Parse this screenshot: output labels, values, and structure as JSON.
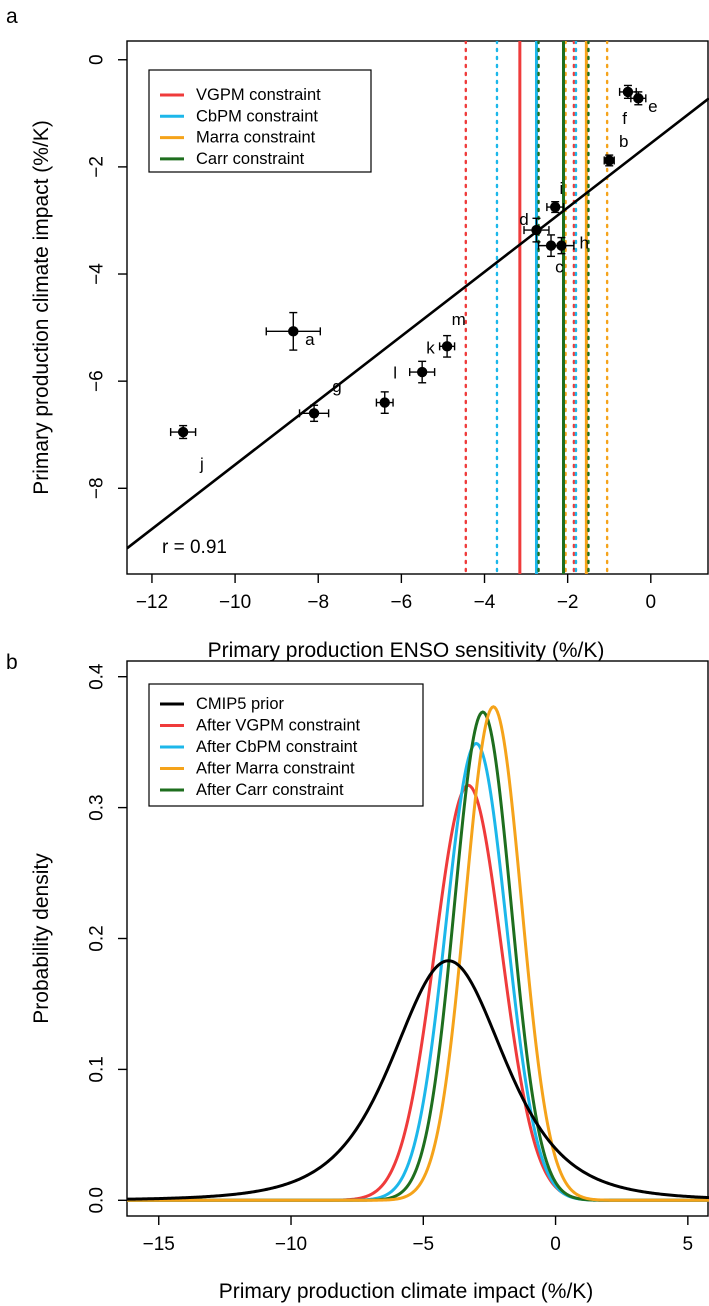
{
  "chart_data": [
    {
      "panel": "a",
      "type": "scatter",
      "xlabel": "Primary production ENSO sensitivity (%/K)",
      "ylabel": "Primary production climate impact (%/K)",
      "xlim": [
        -12.6,
        1.4
      ],
      "ylim": [
        -9.6,
        0.35
      ],
      "xticks": [
        -12,
        -10,
        -8,
        -6,
        -4,
        -2,
        0
      ],
      "xtick_labels": [
        "−12",
        "−10",
        "−8",
        "−6",
        "−4",
        "−2",
        "0"
      ],
      "yticks": [
        0,
        -2,
        -4,
        -6,
        -8
      ],
      "ytick_labels": [
        "0",
        "−2",
        "−4",
        "−6",
        "−8"
      ],
      "points": [
        {
          "label": "a",
          "x": -8.6,
          "y": -5.07,
          "xerr": 0.65,
          "yerr": 0.35,
          "lx": 0.4,
          "ly": -0.15
        },
        {
          "label": "b",
          "x": -1.0,
          "y": -1.88,
          "xerr": 0.12,
          "yerr": 0.1,
          "lx": 0.35,
          "ly": 0.35
        },
        {
          "label": "c",
          "x": -2.4,
          "y": -3.47,
          "xerr": 0.3,
          "yerr": 0.2,
          "lx": 0.2,
          "ly": -0.4
        },
        {
          "label": "d",
          "x": -2.75,
          "y": -3.18,
          "xerr": 0.3,
          "yerr": 0.22,
          "lx": -0.3,
          "ly": 0.2
        },
        {
          "label": "e",
          "x": -0.3,
          "y": -0.72,
          "xerr": 0.18,
          "yerr": 0.12,
          "lx": 0.35,
          "ly": -0.15
        },
        {
          "label": "f",
          "x": -0.55,
          "y": -0.6,
          "xerr": 0.2,
          "yerr": 0.12,
          "lx": -0.08,
          "ly": -0.5
        },
        {
          "label": "g",
          "x": -8.1,
          "y": -6.6,
          "xerr": 0.35,
          "yerr": 0.15,
          "lx": 0.55,
          "ly": 0.5
        },
        {
          "label": "h",
          "x": -2.15,
          "y": -3.47,
          "xerr": 0.3,
          "yerr": 0.15,
          "lx": 0.55,
          "ly": 0.05
        },
        {
          "label": "i",
          "x": -2.3,
          "y": -2.75,
          "xerr": 0.2,
          "yerr": 0.1,
          "lx": 0.15,
          "ly": 0.35
        },
        {
          "label": "j",
          "x": -11.25,
          "y": -6.95,
          "xerr": 0.3,
          "yerr": 0.12,
          "lx": 0.45,
          "ly": -0.6
        },
        {
          "label": "k",
          "x": -5.5,
          "y": -5.83,
          "xerr": 0.3,
          "yerr": 0.2,
          "lx": 0.2,
          "ly": 0.45
        },
        {
          "label": "l",
          "x": -6.4,
          "y": -6.4,
          "xerr": 0.2,
          "yerr": 0.2,
          "lx": 0.25,
          "ly": 0.55
        },
        {
          "label": "m",
          "x": -4.9,
          "y": -5.35,
          "xerr": 0.18,
          "yerr": 0.2,
          "lx": 0.28,
          "ly": 0.5
        }
      ],
      "regression_line": {
        "slope": 0.6,
        "intercept": -1.56
      },
      "annotation": "r = 0.91",
      "constraints": [
        {
          "name": "VGPM constraint",
          "color": "#ef3b3b",
          "center": -3.15,
          "lower": -4.45,
          "upper": -1.85
        },
        {
          "name": "CbPM constraint",
          "color": "#1cb7ea",
          "center": -2.75,
          "lower": -3.7,
          "upper": -1.8
        },
        {
          "name": "Marra constraint",
          "color": "#f5a31a",
          "center": -1.55,
          "lower": -2.05,
          "upper": -1.05
        },
        {
          "name": "Carr constraint",
          "color": "#1e6e1e",
          "center": -2.1,
          "lower": -2.7,
          "upper": -1.5
        }
      ],
      "legend": [
        "VGPM constraint",
        "CbPM constraint",
        "Marra constraint",
        "Carr constraint"
      ],
      "legend_position": "top-left"
    },
    {
      "panel": "b",
      "type": "line",
      "xlabel": "Primary production climate impact (%/K)",
      "ylabel": "Probability density",
      "xlim": [
        -16.2,
        5.8
      ],
      "ylim": [
        -0.012,
        0.412
      ],
      "xticks": [
        -15,
        -10,
        -5,
        0,
        5
      ],
      "xtick_labels": [
        "−15",
        "−10",
        "−5",
        "0",
        "5"
      ],
      "yticks": [
        0.0,
        0.1,
        0.2,
        0.3,
        0.4
      ],
      "ytick_labels": [
        "0.0",
        "0.1",
        "0.2",
        "0.3",
        "0.4"
      ],
      "series": [
        {
          "name": "CMIP5 prior",
          "color": "#000000",
          "mean": -4.05,
          "sd": 2.2,
          "peak": 0.183
        },
        {
          "name": "After VGPM constraint",
          "color": "#ef3b3b",
          "mean": -3.3,
          "sd": 1.26,
          "peak": 0.317
        },
        {
          "name": "After CbPM constraint",
          "color": "#1cb7ea",
          "mean": -3.0,
          "sd": 1.14,
          "peak": 0.349
        },
        {
          "name": "After Marra constraint",
          "color": "#f5a31a",
          "mean": -2.35,
          "sd": 1.06,
          "peak": 0.377
        },
        {
          "name": "After Carr constraint",
          "color": "#1e6e1e",
          "mean": -2.75,
          "sd": 1.07,
          "peak": 0.373
        }
      ],
      "legend": [
        "CMIP5 prior",
        "After VGPM constraint",
        "After CbPM constraint",
        "After Marra constraint",
        "After Carr constraint"
      ],
      "legend_position": "top-left"
    }
  ],
  "panel_labels": {
    "a": "a",
    "b": "b"
  }
}
